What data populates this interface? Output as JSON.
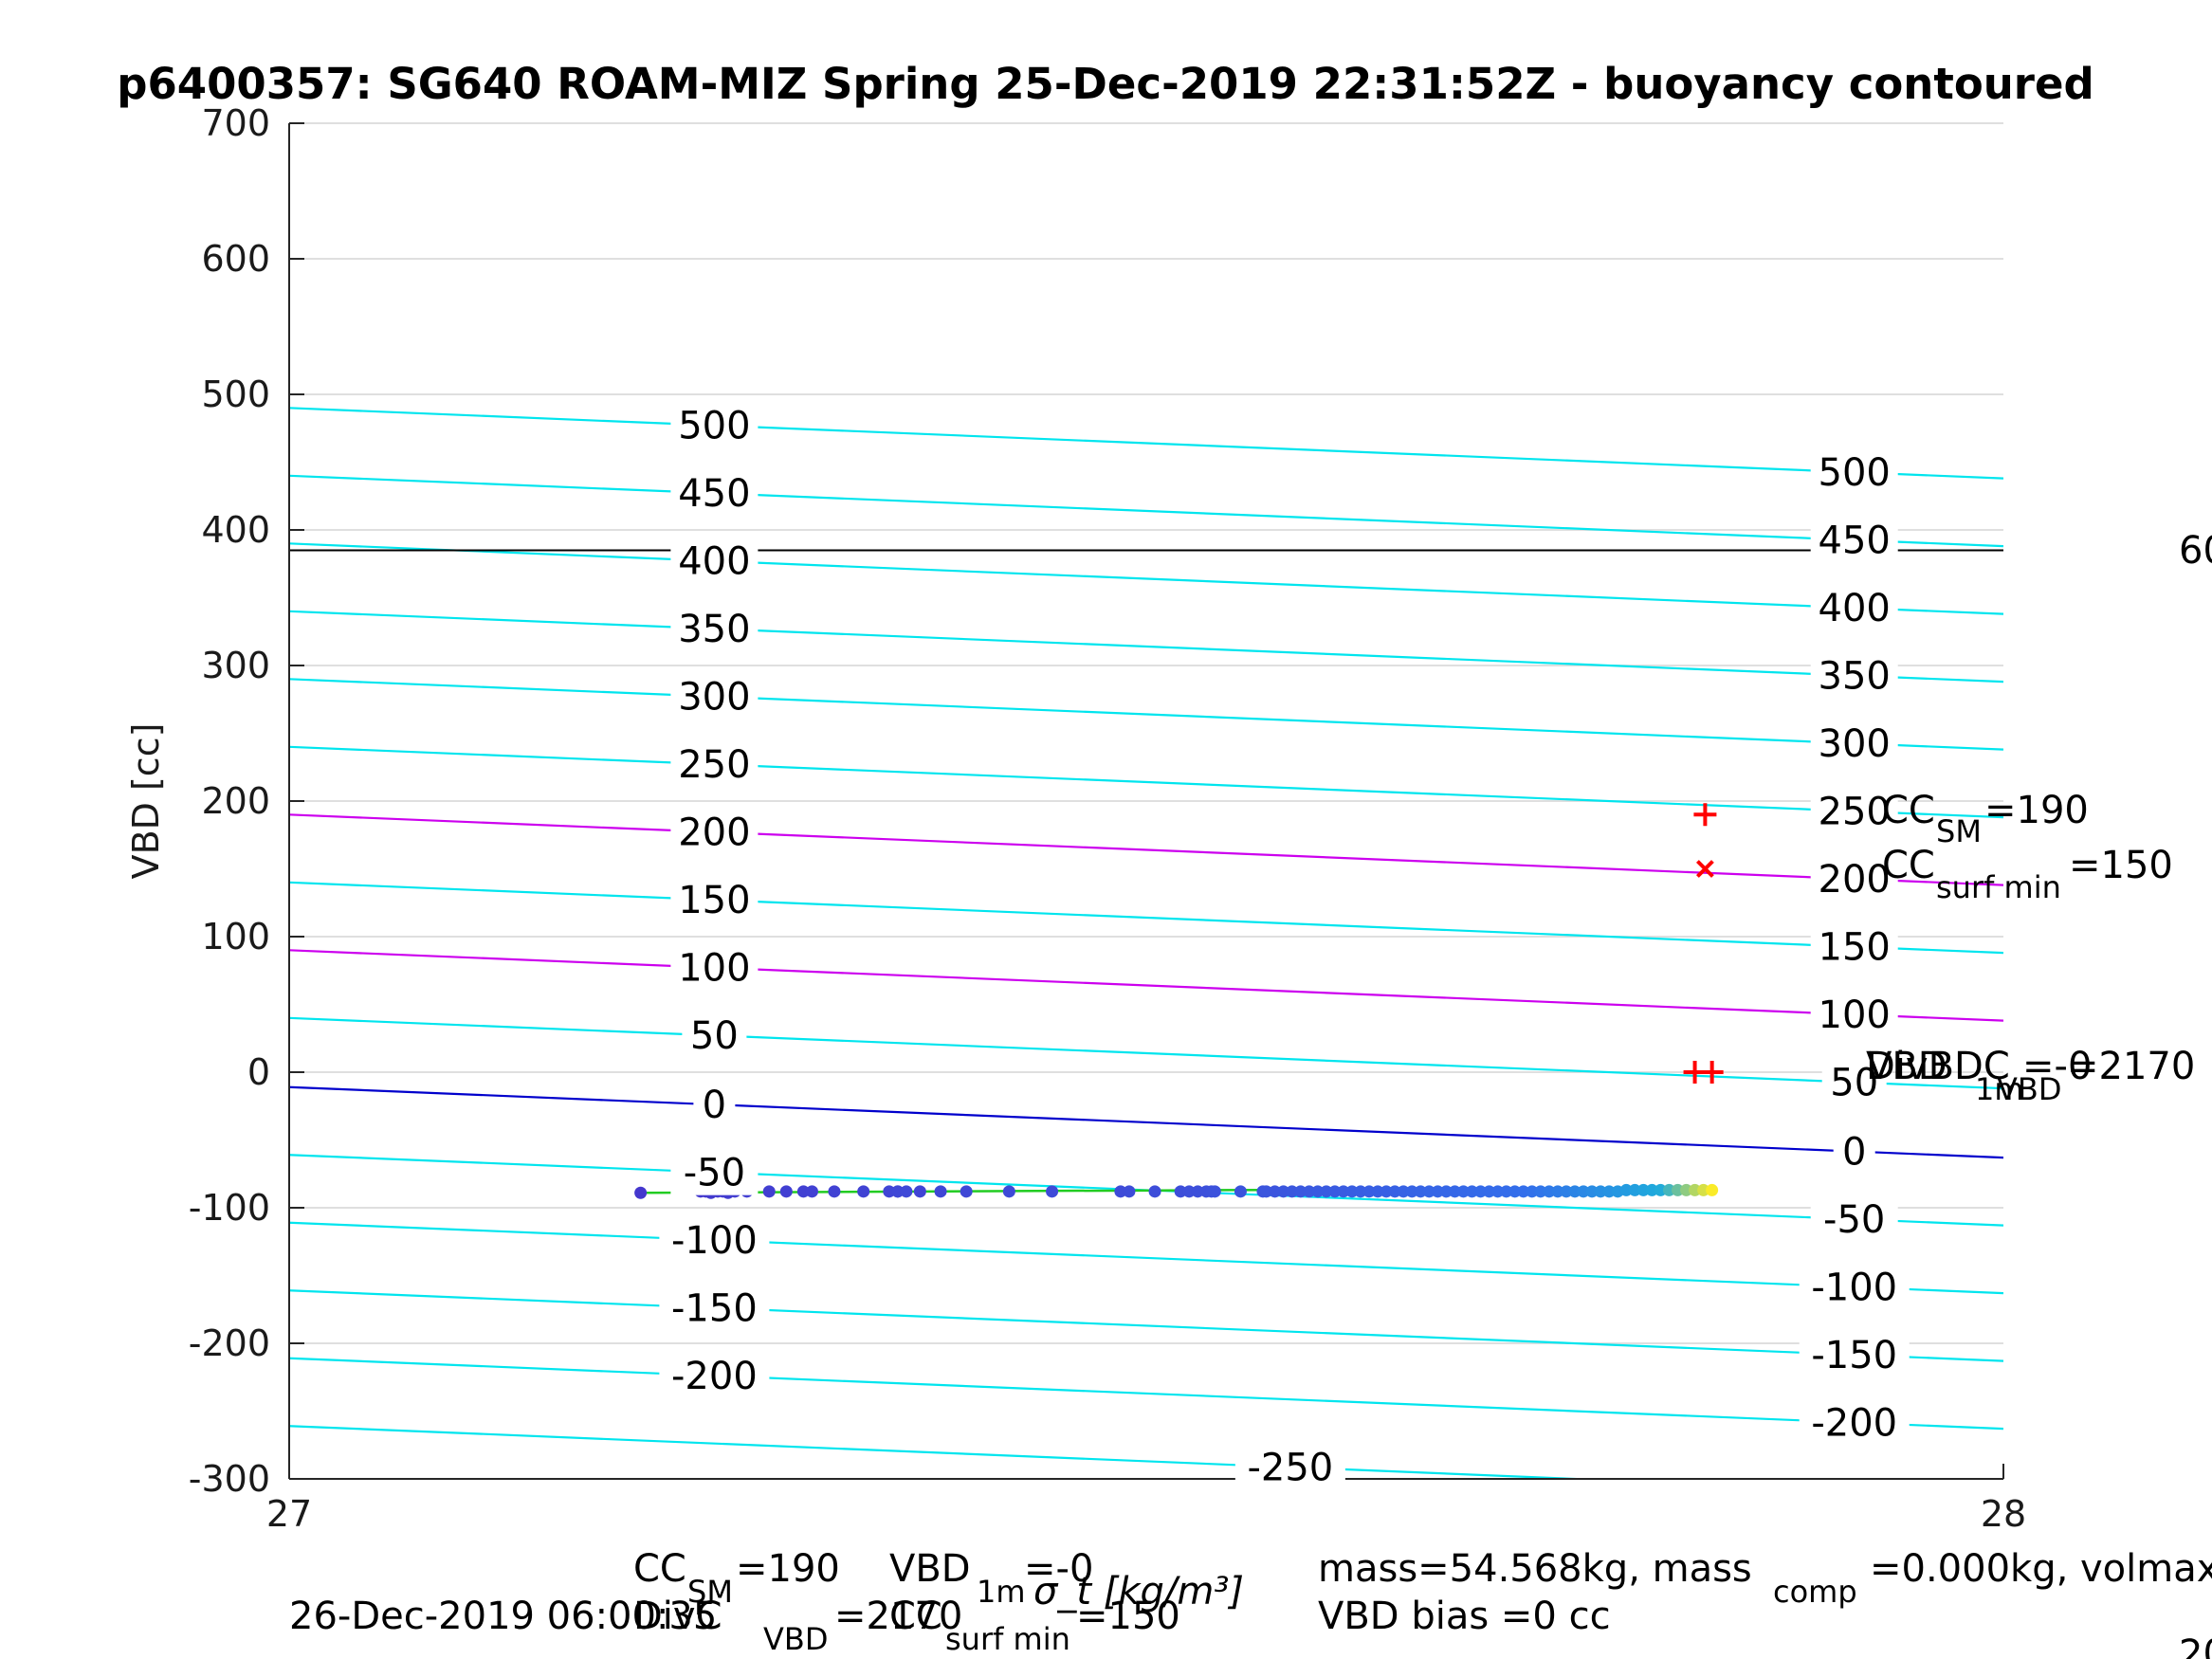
{
  "chart_data": {
    "type": "scatter",
    "title": "p6400357: SG640 ROAM-MIZ Spring 25-Dec-2019 22:31:52Z - buoyancy contoured",
    "xlabel": "σ_t [kg/m³]",
    "ylabel": "VBD [cc]",
    "xlim": [
      27,
      28
    ],
    "ylim": [
      -300,
      700
    ],
    "xticks": [
      "27",
      "28"
    ],
    "yticks": [
      "-300",
      "-200",
      "-100",
      "0",
      "100",
      "200",
      "300",
      "400",
      "500",
      "600",
      "700"
    ],
    "grid": true,
    "horizontal_line": {
      "y": 385,
      "color": "#000000"
    },
    "right_edge_label": "60",
    "buoyancy_contours": [
      {
        "level": 500,
        "left": 490,
        "right": 438,
        "left_label": "500",
        "right_label": "500",
        "color": "#00e5ee"
      },
      {
        "level": 450,
        "left": 440,
        "right": 388,
        "left_label": "450",
        "right_label": "450",
        "color": "#00e5ee"
      },
      {
        "level": 400,
        "left": 390,
        "right": 338,
        "left_label": "400",
        "right_label": "400",
        "color": "#00e5ee"
      },
      {
        "level": 350,
        "left": 340,
        "right": 288,
        "left_label": "350",
        "right_label": "350",
        "color": "#00e5ee"
      },
      {
        "level": 300,
        "left": 290,
        "right": 238,
        "left_label": "300",
        "right_label": "300",
        "color": "#00e5ee"
      },
      {
        "level": 250,
        "left": 240,
        "right": 188,
        "left_label": "250",
        "right_label": "250",
        "color": "#00e5ee"
      },
      {
        "level": 200,
        "left": 190,
        "right": 138,
        "left_label": "200",
        "right_label": "200",
        "color": "#cc00ee"
      },
      {
        "level": 150,
        "left": 140,
        "right": 88,
        "left_label": "150",
        "right_label": "150",
        "color": "#00e5ee"
      },
      {
        "level": 100,
        "left": 90,
        "right": 38,
        "left_label": "100",
        "right_label": "100",
        "color": "#cc00ee"
      },
      {
        "level": 50,
        "left": 40,
        "right": -12,
        "left_label": "50",
        "right_label": "50",
        "color": "#00e5ee"
      },
      {
        "level": 0,
        "left": -11,
        "right": -63,
        "left_label": "0",
        "right_label": "0",
        "color": "#0000cc"
      },
      {
        "level": -50,
        "left": -61,
        "right": -113,
        "left_label": "-50",
        "right_label": "-50",
        "color": "#00e5ee"
      },
      {
        "level": -100,
        "left": -111,
        "right": -163,
        "left_label": "-100",
        "right_label": "-100",
        "color": "#00e5ee"
      },
      {
        "level": -150,
        "left": -161,
        "right": -213,
        "left_label": "-150",
        "right_label": "-150",
        "color": "#00e5ee"
      },
      {
        "level": -200,
        "left": -211,
        "right": -263,
        "left_label": "-200",
        "right_label": "-200",
        "color": "#00e5ee"
      },
      {
        "level": -250,
        "left": -261,
        "right": -313,
        "left_label": "",
        "right_label": "",
        "mid_label": "-250",
        "color": "#00e5ee"
      }
    ],
    "profile_line": {
      "x": [
        27.205,
        27.54,
        27.83
      ],
      "y": [
        -89,
        -87,
        -86
      ],
      "color": "#22cc22"
    },
    "profile_points": {
      "x": [
        27.205,
        27.24,
        27.243,
        27.246,
        27.25,
        27.253,
        27.256,
        27.26,
        27.267,
        27.28,
        27.29,
        27.3,
        27.305,
        27.318,
        27.335,
        27.355,
        27.368,
        27.35,
        27.38,
        27.355,
        27.395,
        27.36,
        27.42,
        27.445,
        27.485,
        27.49,
        27.505,
        27.52,
        27.525,
        27.53,
        27.535,
        27.538,
        27.54,
        27.555,
        27.568,
        27.57,
        27.575,
        27.58,
        27.585,
        27.59,
        27.595,
        27.6,
        27.605,
        27.61,
        27.615,
        27.62,
        27.625,
        27.63,
        27.635,
        27.64,
        27.645,
        27.65,
        27.655,
        27.66,
        27.665,
        27.67,
        27.675,
        27.68,
        27.685,
        27.69,
        27.695,
        27.7,
        27.705,
        27.71,
        27.715,
        27.72,
        27.725,
        27.73,
        27.735,
        27.74,
        27.745,
        27.75,
        27.755,
        27.76,
        27.765,
        27.77,
        27.775,
        27.78,
        27.785,
        27.79,
        27.795,
        27.8,
        27.805,
        27.81,
        27.815,
        27.82,
        27.825,
        27.83
      ],
      "y": [
        -89,
        -88,
        -88,
        -89,
        -88,
        -88,
        -89,
        -88,
        -88,
        -88,
        -88,
        -88,
        -88,
        -88,
        -88,
        -88,
        -88,
        -88,
        -88,
        -88,
        -88,
        -88,
        -88,
        -88,
        -88,
        -88,
        -88,
        -88,
        -88,
        -88,
        -88,
        -88,
        -88,
        -88,
        -88,
        -88,
        -88,
        -88,
        -88,
        -88,
        -88,
        -88,
        -88,
        -88,
        -88,
        -88,
        -88,
        -88,
        -88,
        -88,
        -88,
        -88,
        -88,
        -88,
        -88,
        -88,
        -88,
        -88,
        -88,
        -88,
        -88,
        -88,
        -88,
        -88,
        -88,
        -88,
        -88,
        -88,
        -88,
        -88,
        -88,
        -88,
        -88,
        -88,
        -88,
        -88,
        -88,
        -87,
        -87,
        -87,
        -87,
        -87,
        -87,
        -87,
        -87,
        -87,
        -87,
        -87
      ]
    },
    "markers": [
      {
        "symbol": "+",
        "x": 27.826,
        "y": 190,
        "color": "#ff0000"
      },
      {
        "symbol": "x",
        "x": 27.826,
        "y": 150,
        "color": "#ff0000"
      },
      {
        "symbol": "+",
        "x": 27.82,
        "y": 0,
        "color": "#ff0000"
      },
      {
        "symbol": "+",
        "x": 27.83,
        "y": 0,
        "color": "#ff0000"
      }
    ],
    "annotations": {
      "cc_sm": {
        "main": "CC",
        "sub": "SM",
        "tail": "=190"
      },
      "cc_surf_min": {
        "main": "CC",
        "sub": "surf min",
        "tail": "=150"
      },
      "vbd_1m_overlap_a": "VBD",
      "vbd_1m_overlap_sub": "1m",
      "vbd_1m_overlap_tail": "=-0",
      "divbd_overlap_a": "DivBDC",
      "divbd_overlap_sub": "VBD",
      "divbd_overlap_tail": "=2170"
    }
  },
  "footer": {
    "date": "26-Dec-2019 06:00:35",
    "ccsm_main": "CC",
    "ccsm_sub": "SM",
    "ccsm_tail": "=190",
    "vbd1m_main": "VBD",
    "vbd1m_sub": "1m",
    "vbd1m_tail": "=-0",
    "divc_main": "DivC",
    "divc_sub": "VBD",
    "divc_tail": "=2170",
    "ccsurf_main": "CC",
    "ccsurf_sub": "surf min",
    "ccsurf_tail": "=150",
    "mass_line_a": "mass=54.568kg, mass",
    "mass_line_sub": "comp",
    "mass_line_b": "=0.000kg, volmax",
    "vbd_bias": "VBD bias =0 cc",
    "bottom_edge_fragment": "20"
  },
  "colors": {
    "axis": "#262626",
    "grid": "#dfdfdf",
    "marker": "#ff0000"
  }
}
